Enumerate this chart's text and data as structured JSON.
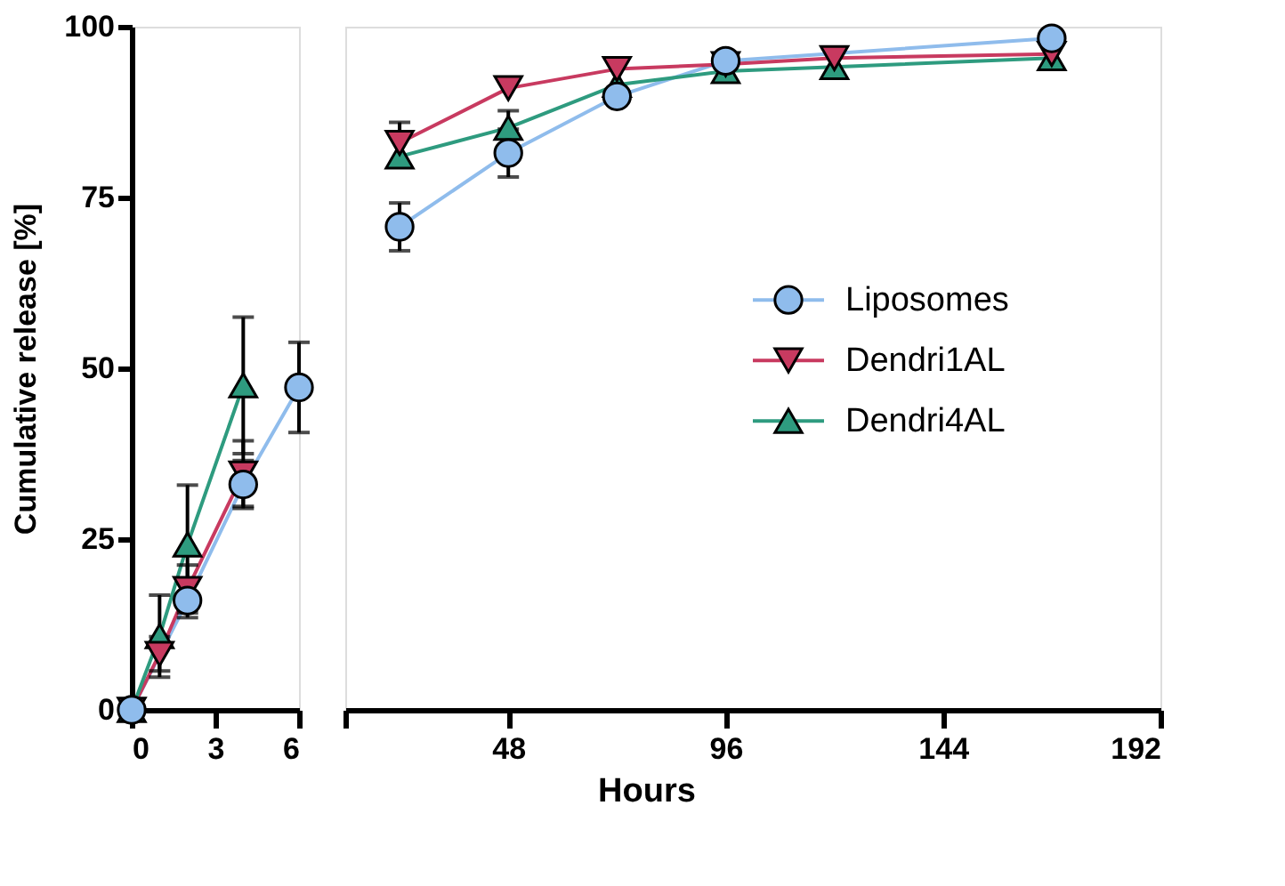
{
  "chart_data": [
    {
      "type": "line",
      "ylabel": "Cumulative release [%]",
      "xlim": [
        0,
        6
      ],
      "xticks": [
        0,
        3,
        6
      ],
      "ylim": [
        0,
        100
      ],
      "yticks": [
        0,
        25,
        50,
        75,
        100
      ],
      "grid": false,
      "line_style": "solid",
      "x": [
        0,
        1,
        2,
        4,
        6
      ],
      "series": [
        {
          "color": "#8fbcec",
          "marker": "circle",
          "values": [
            0,
            null,
            16,
            33,
            47.2
          ],
          "errors": [
            null,
            null,
            2.5,
            3.5,
            6.6
          ]
        },
        {
          "color": "#c83a60",
          "marker": "triangle-down",
          "values": [
            0,
            8.2,
            17.7,
            34.6,
            null
          ],
          "errors": [
            null,
            2.5,
            3.5,
            4.8,
            null
          ]
        },
        {
          "color": "#2e9b7f",
          "marker": "triangle",
          "values": [
            0,
            10.8,
            24.2,
            47.5,
            null
          ],
          "errors": [
            null,
            6,
            8.7,
            10,
            null
          ]
        }
      ]
    },
    {
      "type": "line",
      "xlabel": "Hours",
      "xlim": [
        12,
        192
      ],
      "xticks": [
        {
          "value": 12,
          "label": null
        },
        48,
        96,
        144,
        192
      ],
      "ylim": [
        0,
        100
      ],
      "grid": false,
      "legend": "right",
      "tick_labels": "x",
      "line_style": "solid",
      "x": [
        24,
        48,
        72,
        96,
        120,
        168
      ],
      "series": [
        {
          "name": "Liposomes",
          "color": "#8fbcec",
          "marker": "circle",
          "values": [
            70.7,
            81.5,
            89.8,
            95,
            null,
            98.3
          ],
          "errors": [
            3.5,
            3.5,
            null,
            null,
            null,
            null
          ]
        },
        {
          "name": "Dendri1AL",
          "color": "#c83a60",
          "marker": "triangle-down",
          "values": [
            83,
            91,
            93.8,
            94.5,
            95.4,
            96
          ],
          "errors": [
            3,
            null,
            null,
            null,
            null,
            null
          ]
        },
        {
          "name": "Dendri4AL",
          "color": "#2e9b7f",
          "marker": "triangle",
          "values": [
            81,
            85.2,
            91.5,
            93.5,
            94.1,
            95.4
          ],
          "errors": [
            null,
            2.5,
            null,
            null,
            null,
            null
          ]
        }
      ]
    }
  ]
}
